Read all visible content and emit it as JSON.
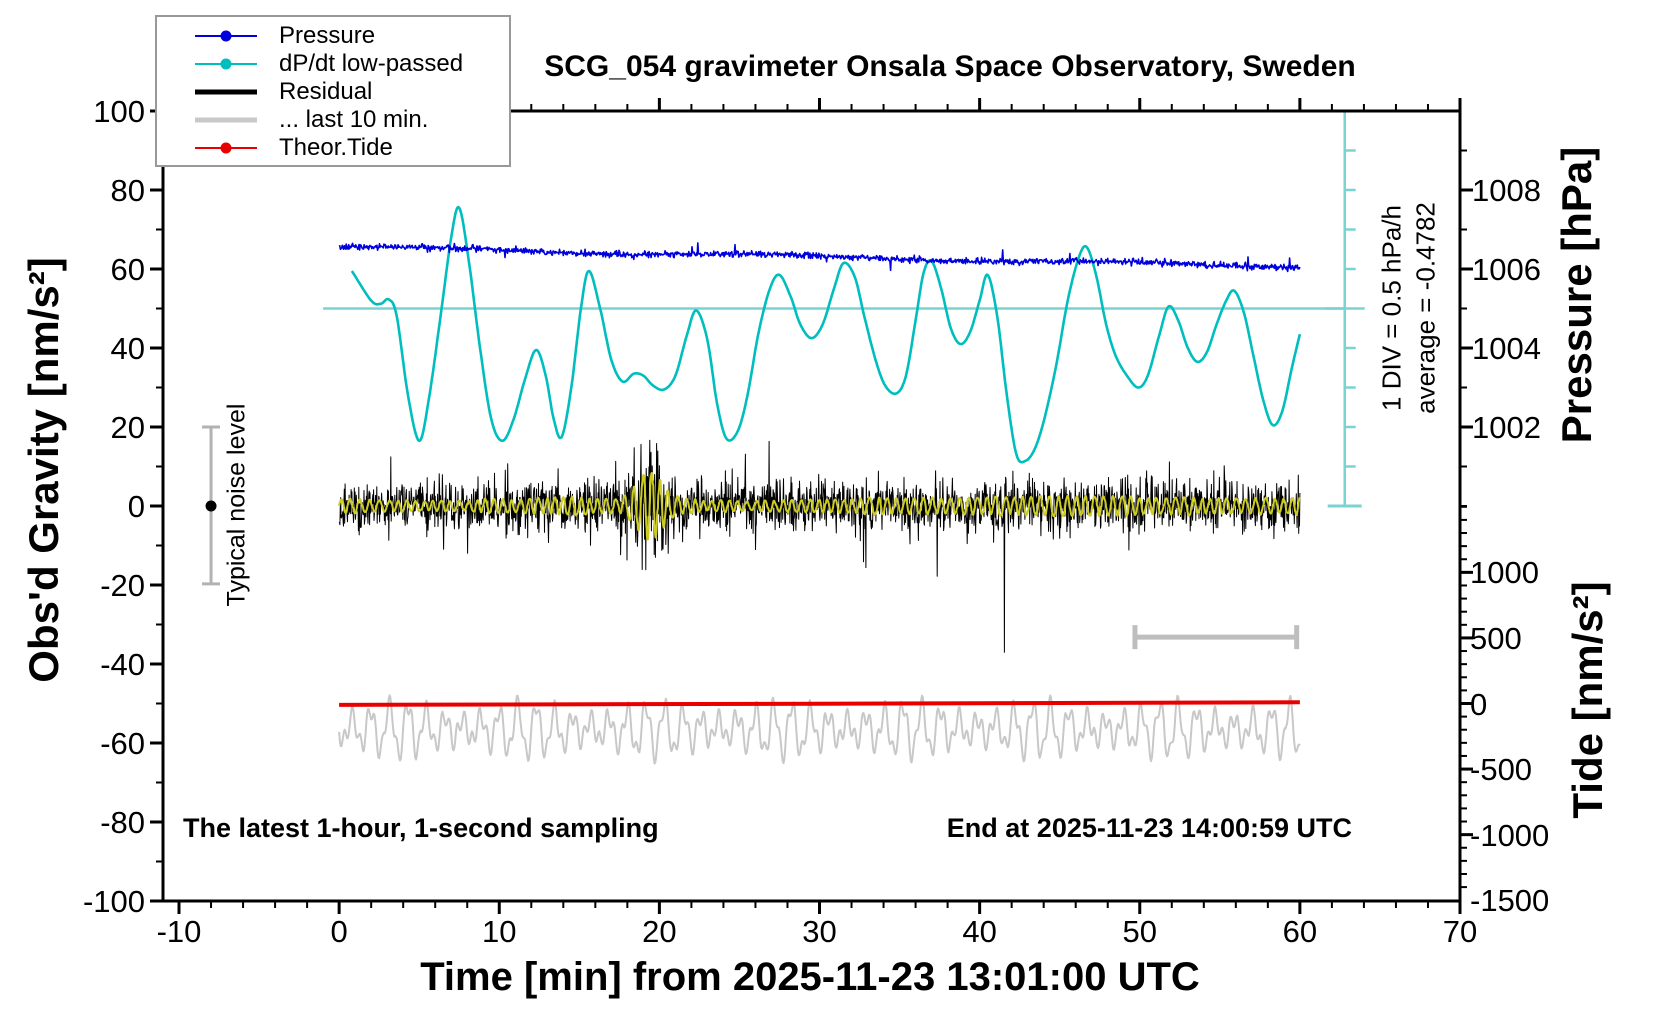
{
  "title": "SCG_054 gravimeter Onsala Space Observatory, Sweden",
  "xaxis_label": "Time [min] from 2025-11-23 13:01:00 UTC",
  "ylabel_left": "Obs'd Gravity [nm/s²]",
  "ylabel_pressure": "Pressure [hPa]",
  "ylabel_tide": "Tide [nm/s²]",
  "footer_left": "The latest 1-hour, 1-second sampling",
  "footer_right": "End at 2025-11-23 14:00:59 UTC",
  "annotation_div_scale": "1 DIV = 0.5 hPa/h",
  "annotation_average": "average = -0.4782",
  "annotation_noise": "Typical noise level",
  "legend": {
    "items": [
      {
        "label": "Pressure",
        "color": "#0000DD",
        "style": "thin-dot"
      },
      {
        "label": "dP/dt low-passed",
        "color": "#00BEBE",
        "style": "thin-dot"
      },
      {
        "label": "Residual",
        "color": "#000000",
        "style": "thick"
      },
      {
        "label": "... last 10 min.",
        "color": "#C8C8C8",
        "style": "thick"
      },
      {
        "label": "Theor.Tide",
        "color": "#E80000",
        "style": "thin-dot"
      }
    ]
  },
  "chart_data": {
    "type": "line",
    "title": "SCG_054 gravimeter Onsala Space Observatory, Sweden",
    "xlabel": "Time [min] from 2025-11-23 13:01:00 UTC",
    "x_range": [
      -11,
      70
    ],
    "x_major_ticks": [
      -10,
      0,
      10,
      20,
      30,
      40,
      50,
      60,
      70
    ],
    "x_minor_step": 2,
    "grid": false,
    "legend_position": "top-left",
    "gravity_axis": {
      "label": "Obs'd Gravity [nm/s²]",
      "range": [
        -100,
        100
      ],
      "major_ticks": [
        -100,
        -80,
        -60,
        -40,
        -20,
        0,
        20,
        40,
        60,
        80,
        100
      ],
      "minor_step": 10
    },
    "pressure_axis": {
      "label": "Pressure [hPa]",
      "major_ticks": [
        1002,
        1004,
        1006,
        1008
      ],
      "minor_step": 1,
      "minor_range": [
        1000,
        1009
      ],
      "mapping": "pressure_hPa = 1000 + gravity_units/10"
    },
    "tide_axis": {
      "label": "Tide [nm/s²]",
      "major_ticks": [
        1000,
        500,
        0,
        -500,
        -1000,
        -1500
      ],
      "minor_step": 100,
      "minor_range": [
        -1400,
        1500
      ],
      "zero_at_gravity": -50,
      "tide_units_per_gravity_unit": 30.12
    },
    "references": {
      "dpdt_mean_line_gravity": 50,
      "div_bar": {
        "x_time": 62.8,
        "gravity_from": 0,
        "gravity_to": 100,
        "div_gravity": 10,
        "color": "#79D3D3",
        "meaning": "1 DIV = 0.5 hPa/h"
      },
      "last10_bar": {
        "t_from": 49.7,
        "t_to": 59.8,
        "gravity": -33.2,
        "color": "#BEBEBE"
      },
      "noise_bar": {
        "t": -8,
        "gravity_from": -19.7,
        "gravity_to": 20,
        "dot_gravity": 0,
        "color": "#B2B2B2",
        "label": "Typical noise level"
      }
    },
    "series": [
      {
        "name": "Pressure",
        "color": "#0000DD",
        "render": "pressure",
        "start_hPa": 1006.56,
        "end_hPa": 1006.06,
        "trend_hPa_per_h": -0.4782,
        "t0": 0,
        "t1": 60,
        "g0": 65.6,
        "g1": 60.6,
        "noise": 0.55,
        "outlier_p": 0.012,
        "outlier": 1.8,
        "wave_amp": 0.35,
        "wave_period": 22,
        "step": 0.04,
        "width": 1.6
      },
      {
        "name": "dP/dt low-passed",
        "color": "#00BEBE",
        "render": "dpdt",
        "width": 2.6,
        "units": "gravity units; 10 units = 1 DIV = 0.5 hPa/h about the mean (50)",
        "keypoints": [
          [
            0.8,
            59.5
          ],
          [
            2.0,
            52
          ],
          [
            2.6,
            51.2
          ],
          [
            3.1,
            52.3
          ],
          [
            3.6,
            48
          ],
          [
            4.3,
            28
          ],
          [
            5.0,
            16.5
          ],
          [
            5.6,
            27
          ],
          [
            6.3,
            47
          ],
          [
            7.0,
            68
          ],
          [
            7.5,
            75.5
          ],
          [
            8.1,
            62
          ],
          [
            8.8,
            40
          ],
          [
            9.5,
            22
          ],
          [
            10.2,
            16.5
          ],
          [
            10.9,
            22
          ],
          [
            11.6,
            32
          ],
          [
            12.3,
            39.5
          ],
          [
            12.9,
            33
          ],
          [
            13.4,
            22
          ],
          [
            13.9,
            17.5
          ],
          [
            14.5,
            30
          ],
          [
            15.1,
            50
          ],
          [
            15.6,
            59.5
          ],
          [
            16.3,
            50
          ],
          [
            17.0,
            37
          ],
          [
            17.7,
            31.5
          ],
          [
            18.4,
            33.5
          ],
          [
            19.0,
            33
          ],
          [
            19.6,
            30.5
          ],
          [
            20.3,
            29.5
          ],
          [
            21.0,
            33
          ],
          [
            21.7,
            43
          ],
          [
            22.3,
            49.5
          ],
          [
            23.0,
            42
          ],
          [
            23.6,
            26
          ],
          [
            24.2,
            17
          ],
          [
            24.9,
            19
          ],
          [
            25.5,
            28
          ],
          [
            26.2,
            44
          ],
          [
            26.9,
            55
          ],
          [
            27.5,
            58.5
          ],
          [
            28.2,
            53
          ],
          [
            28.8,
            46
          ],
          [
            29.5,
            42.5
          ],
          [
            30.2,
            46
          ],
          [
            30.9,
            55
          ],
          [
            31.5,
            61.5
          ],
          [
            32.2,
            58
          ],
          [
            32.8,
            48
          ],
          [
            33.5,
            37
          ],
          [
            34.1,
            30.5
          ],
          [
            34.8,
            28.5
          ],
          [
            35.4,
            33
          ],
          [
            36.0,
            47
          ],
          [
            36.5,
            59
          ],
          [
            37.0,
            62
          ],
          [
            37.6,
            55
          ],
          [
            38.2,
            45
          ],
          [
            38.8,
            41
          ],
          [
            39.4,
            44
          ],
          [
            40.0,
            52
          ],
          [
            40.5,
            58.5
          ],
          [
            41.1,
            48
          ],
          [
            41.7,
            28
          ],
          [
            42.3,
            13
          ],
          [
            42.9,
            11.5
          ],
          [
            43.5,
            15
          ],
          [
            44.1,
            23
          ],
          [
            44.8,
            36
          ],
          [
            45.5,
            52
          ],
          [
            46.2,
            63
          ],
          [
            46.7,
            65.5
          ],
          [
            47.3,
            58
          ],
          [
            47.9,
            46
          ],
          [
            48.5,
            38
          ],
          [
            49.2,
            33
          ],
          [
            49.9,
            30
          ],
          [
            50.5,
            33
          ],
          [
            51.2,
            43
          ],
          [
            51.8,
            50.5
          ],
          [
            52.4,
            47
          ],
          [
            53.0,
            40
          ],
          [
            53.6,
            36.5
          ],
          [
            54.2,
            39
          ],
          [
            54.8,
            46
          ],
          [
            55.4,
            52
          ],
          [
            55.9,
            54.5
          ],
          [
            56.5,
            49
          ],
          [
            57.1,
            38
          ],
          [
            57.7,
            27
          ],
          [
            58.3,
            20.5
          ],
          [
            58.9,
            24
          ],
          [
            59.5,
            35
          ],
          [
            60.0,
            43.5
          ]
        ]
      },
      {
        "name": "Residual",
        "color": "#000000",
        "render": "residual",
        "width": 1,
        "t0": 0,
        "t1": 60,
        "center": 0,
        "sigma_base": 4.3,
        "burst_center": 19.3,
        "burst_sigma": 1.7,
        "burst_amp": 4.8,
        "spike_p": 0.05,
        "spike_mult": 1.9,
        "clamp": 28,
        "step": 0.025,
        "extra_spikes": [
          [
            41.55,
            -37
          ]
        ]
      },
      {
        "name": "Residual low-passed overlay",
        "color": "#CCCC22",
        "render": "yellow",
        "width": 2,
        "t0": 0,
        "t1": 60,
        "base_amp": 1.7,
        "period": 0.55,
        "packet_center": 19.4,
        "packet_amp": 7.5,
        "packet_sigma": 1.15,
        "step": 0.015
      },
      {
        "name": "... last 10 min.",
        "color": "#C8C8C8",
        "render": "last10",
        "width": 2,
        "t0": 0,
        "t1": 60,
        "center_gravity": -56.5,
        "amplitude_gravity": 9,
        "step": 0.05
      },
      {
        "name": "Theor.Tide",
        "color": "#E80000",
        "render": "tide",
        "width": 4,
        "points_gravity": [
          [
            0,
            -50.35
          ],
          [
            30,
            -50.05
          ],
          [
            60,
            -49.7
          ]
        ],
        "tide_value_range_nms2": [
          -10,
          10
        ]
      }
    ]
  }
}
